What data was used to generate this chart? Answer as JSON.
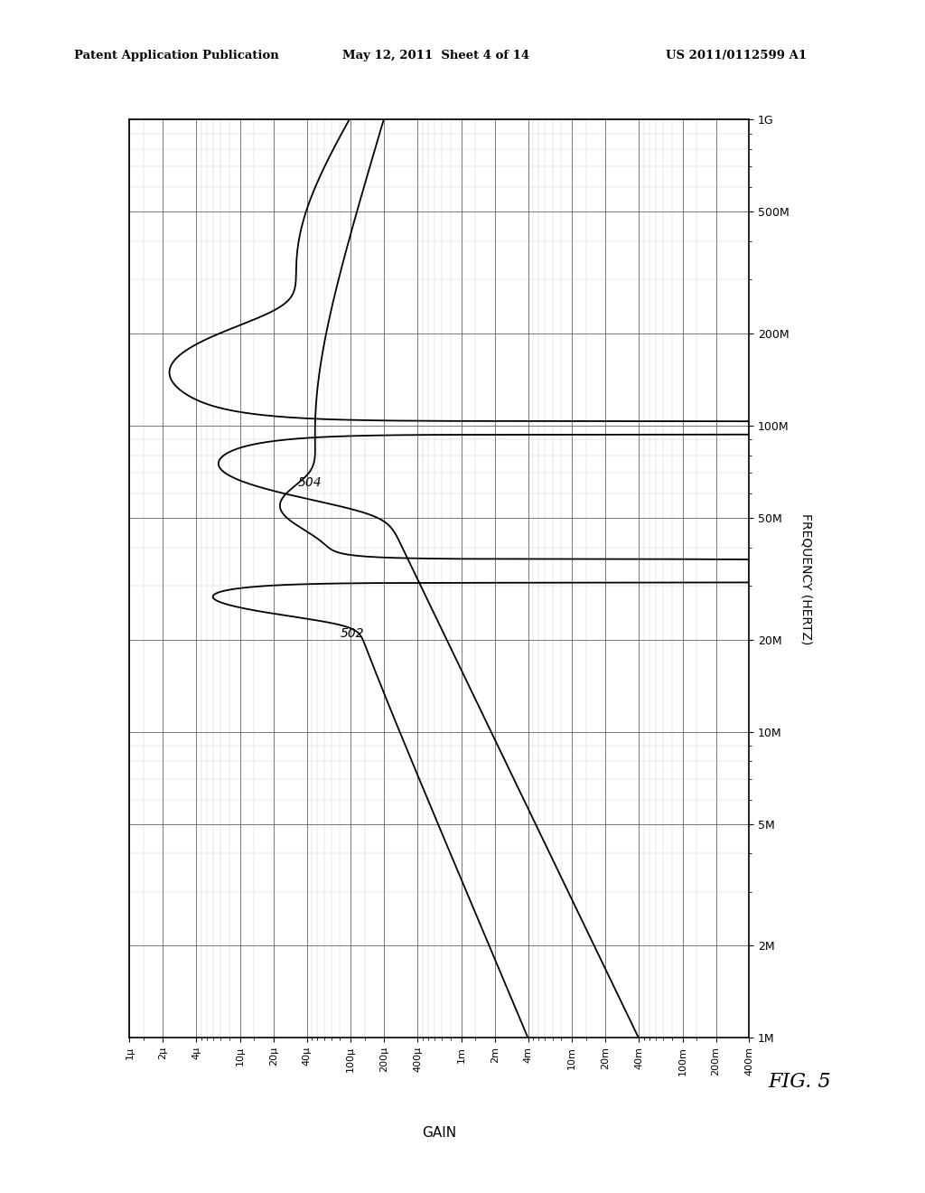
{
  "header_left": "Patent Application Publication",
  "header_mid": "May 12, 2011  Sheet 4 of 14",
  "header_right": "US 2011/0112599 A1",
  "fig_label": "FIG. 5",
  "xlabel": "GAIN",
  "ylabel": "FREQUENCY (HERTZ)",
  "xmin": 1e-06,
  "xmax": 0.4,
  "ymin": 1000000.0,
  "ymax": 1000000000.0,
  "yticks": [
    1000000.0,
    2000000.0,
    5000000.0,
    10000000.0,
    20000000.0,
    50000000.0,
    100000000.0,
    200000000.0,
    500000000.0,
    1000000000.0
  ],
  "ytick_labels": [
    "1M",
    "2M",
    "5M",
    "10M",
    "20M",
    "50M",
    "100M",
    "200M",
    "500M",
    "1G"
  ],
  "xticks": [
    1e-06,
    2e-06,
    4e-06,
    1e-05,
    2e-05,
    4e-05,
    0.0001,
    0.0002,
    0.0004,
    0.001,
    0.002,
    0.004,
    0.01,
    0.02,
    0.04,
    0.1,
    0.2,
    0.4
  ],
  "xtick_labels": [
    "1μ",
    "2μ",
    "4μ",
    "10μ",
    "20μ",
    "40μ",
    "100μ",
    "200μ",
    "400μ",
    "1m",
    "2m",
    "4m",
    "10m",
    "20m",
    "40m",
    "100m",
    "200m",
    "400m"
  ],
  "label_502": "502",
  "label_504": "504",
  "background": "#ffffff",
  "line_color": "#000000",
  "grid_major_color": "#555555",
  "grid_minor_color": "#aaaaaa"
}
